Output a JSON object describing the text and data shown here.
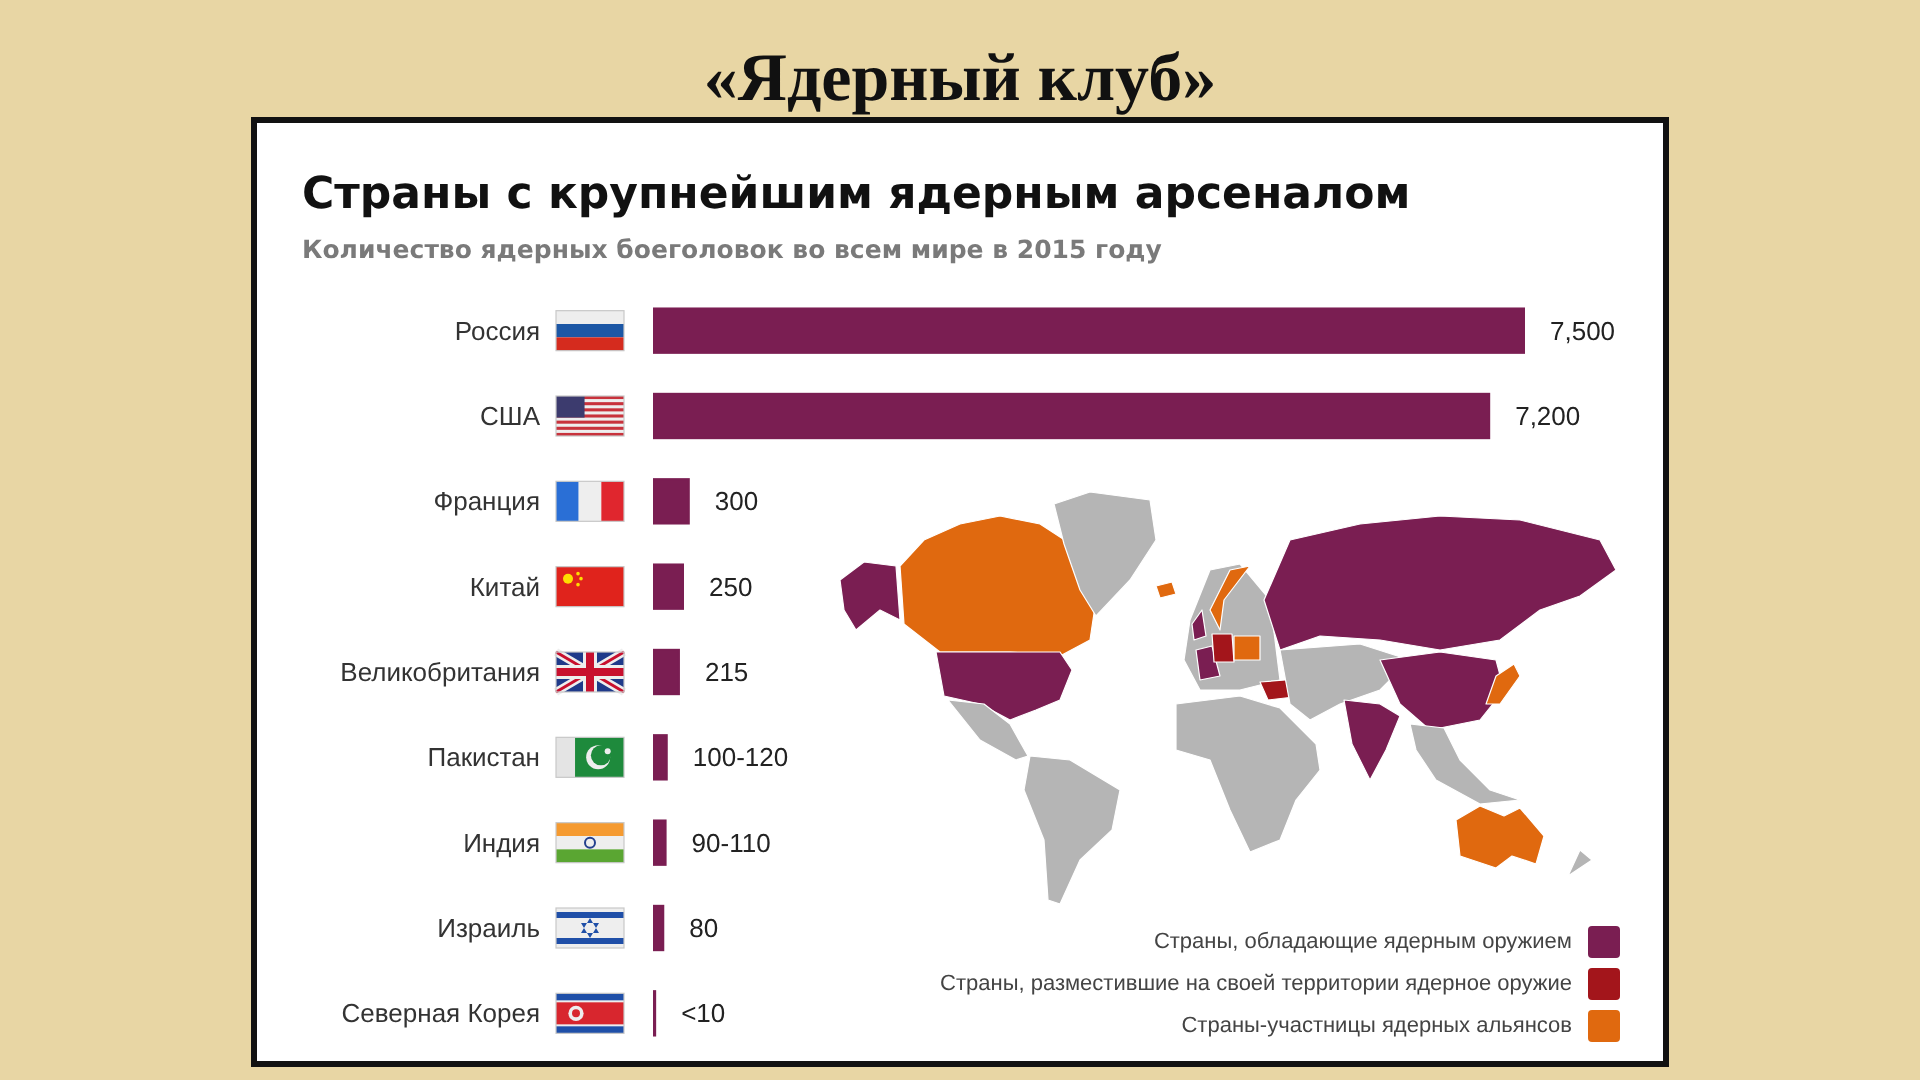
{
  "chart_data": {
    "type": "bar",
    "orientation": "horizontal",
    "title": "Страны с крупнейшим ядерным арсеналом",
    "subtitle": "Количество ядерных боеголовок во всем мире в 2015 году",
    "annotations": [
      "«Ядерный клуб»",
      "Страны, обладающие ядерным оружием",
      "Страны, разместившие на своей территории ядерное оружие",
      "Страны-участницы ядерных альянсов"
    ],
    "categories": [
      "Россия",
      "США",
      "Франция",
      "Китай",
      "Великобритания",
      "Пакистан",
      "Индия",
      "Израиль",
      "Северная Корея"
    ],
    "values": [
      7500,
      7200,
      300,
      250,
      215,
      110,
      100,
      80,
      10
    ],
    "value_labels": [
      "7,500",
      "7,200",
      "300",
      "250",
      "215",
      "100-120",
      "90-110",
      "80",
      "<10"
    ],
    "color": "#7a1e52",
    "xlim": [
      0,
      7500
    ],
    "tick_labels": "y"
  }
}
